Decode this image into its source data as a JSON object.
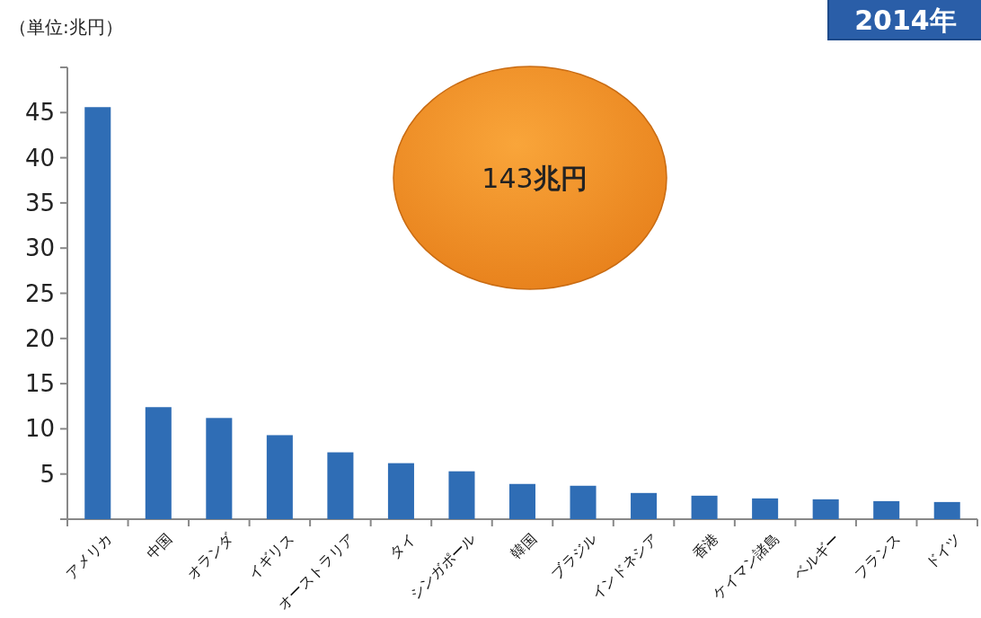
{
  "chart_data": {
    "type": "bar",
    "title": "2014年",
    "categories": [
      "アメリカ",
      "中国",
      "オランダ",
      "イギリス",
      "オーストラリア",
      "タイ",
      "シンガポール",
      "韓国",
      "ブラジル",
      "インドネシア",
      "香港",
      "ケイマン諸島",
      "ベルギー",
      "フランス",
      "ドイツ"
    ],
    "values": [
      45.6,
      12.4,
      11.2,
      9.3,
      7.4,
      6.2,
      5.3,
      3.9,
      3.7,
      2.9,
      2.6,
      2.3,
      2.2,
      2.0,
      1.9
    ],
    "color": "#2f6db5",
    "ylim": [
      0,
      50
    ],
    "yticks": [
      {
        "value": 0,
        "label": null
      },
      5,
      10,
      15,
      20,
      25,
      30,
      35,
      40,
      45,
      {
        "value": 50,
        "label": null
      }
    ],
    "grid": false,
    "annotations": [
      "（単位:兆円）",
      "143兆円"
    ]
  }
}
